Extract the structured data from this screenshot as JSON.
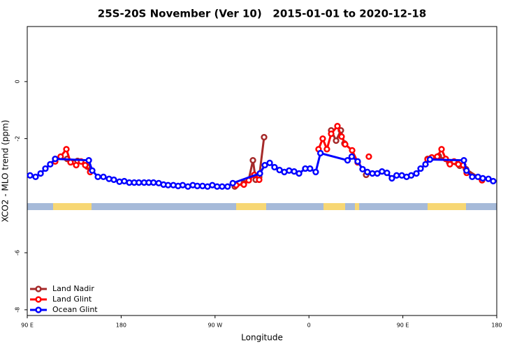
{
  "chart_data": {
    "type": "line",
    "title": "25S-20S November (Ver 10)   2015-01-01 to 2020-12-18",
    "x_label": "Longitude",
    "y_label": "XCO2 - MLO trend (ppm)",
    "xlim": [
      90,
      540
    ],
    "xticks": [
      {
        "value": 90,
        "label": "90 E"
      },
      {
        "value": 180,
        "label": "180"
      },
      {
        "value": 270,
        "label": "90 W"
      },
      {
        "value": 360,
        "label": "0"
      },
      {
        "value": 450,
        "label": "90 E"
      },
      {
        "value": 540,
        "label": "180"
      }
    ],
    "ylim": [
      -8.2,
      1.93
    ],
    "yticks": [
      -8,
      -6,
      -2,
      0
    ],
    "legend": "bottom-left",
    "series": [
      {
        "name": "Land Nadir",
        "color": "#a52a2a",
        "x": [
          116.8,
          128.2,
          138.2,
          147.6,
          null,
          288.9,
          297.6,
          302.3,
          306.3,
          309,
          312.3,
          317,
          null,
          381.3,
          386,
          390.6,
          394,
          null,
          414.8,
          null,
          473.7,
          484.4,
          494.4,
          504.5,
          510.5,
          525.9
        ],
        "values": [
          -2.71,
          -2.71,
          -2.78,
          -2.98,
          null,
          -3.68,
          -3.56,
          -3.44,
          -2.76,
          -3.44,
          -3.34,
          -1.95,
          null,
          -1.71,
          -2.07,
          -1.71,
          -2.17,
          null,
          -3.27,
          null,
          -2.71,
          -2.61,
          -2.83,
          -2.95,
          -3.07,
          -3.44
        ]
      },
      {
        "name": "Land Glint",
        "color": "#ff0000",
        "x": [
          116.8,
          122,
          127.5,
          131.5,
          136.9,
          141.6,
          145.6,
          150.3,
          null,
          290.2,
          297.6,
          302.3,
          307.6,
          312.3,
          null,
          369.2,
          373.2,
          377.2,
          381.3,
          387.3,
          391.3,
          394.7,
          401.4,
          406.7,
          null,
          417.4,
          null,
          473.7,
          477.7,
          483,
          487.1,
          491.1,
          495.1,
          499.1,
          503.2,
          507.9,
          511.2,
          525.9
        ],
        "values": [
          -2.8,
          -2.63,
          -2.37,
          -2.83,
          -2.93,
          -2.8,
          -2.93,
          -3.17,
          null,
          -3.63,
          -3.61,
          -3.46,
          -3.27,
          -3.44,
          null,
          -2.37,
          -2.0,
          -2.37,
          -1.83,
          -1.56,
          -1.93,
          -2.2,
          -2.41,
          -2.83,
          null,
          -2.63,
          null,
          -2.73,
          -2.66,
          -2.63,
          -2.37,
          -2.71,
          -2.9,
          -2.8,
          -2.9,
          -2.93,
          -3.2,
          -3.46
        ]
      },
      {
        "name": "Ocean Glint",
        "color": "#0000ff",
        "x": [
          92.7,
          98,
          102.8,
          107.4,
          112,
          116.8,
          149,
          152.3,
          157.7,
          163,
          168.4,
          173,
          178.4,
          183,
          187.8,
          192.5,
          197,
          202,
          206.5,
          211,
          216,
          220.6,
          225,
          230,
          234.6,
          239,
          244,
          248.7,
          253,
          258,
          262.8,
          267.4,
          272,
          276.8,
          282,
          287,
          313,
          317.7,
          322.4,
          327,
          331.8,
          336.4,
          341,
          345.8,
          350.5,
          356.5,
          361,
          366.5,
          371,
          397,
          401,
          406.7,
          411.4,
          416,
          420.8,
          425.5,
          430,
          434.8,
          439.5,
          444,
          449,
          453.6,
          458,
          463,
          467,
          471.7,
          476,
          508.5,
          511,
          516.5,
          522,
          526.6,
          532,
          536.6
        ],
        "values": [
          -3.29,
          -3.34,
          -3.22,
          -3.05,
          -2.9,
          -2.71,
          -2.76,
          -3.12,
          -3.34,
          -3.34,
          -3.41,
          -3.44,
          -3.51,
          -3.49,
          -3.54,
          -3.54,
          -3.54,
          -3.54,
          -3.54,
          -3.54,
          -3.56,
          -3.61,
          -3.63,
          -3.63,
          -3.66,
          -3.63,
          -3.68,
          -3.63,
          -3.66,
          -3.66,
          -3.68,
          -3.63,
          -3.68,
          -3.68,
          -3.68,
          -3.56,
          -3.22,
          -2.93,
          -2.85,
          -3.0,
          -3.1,
          -3.17,
          -3.12,
          -3.15,
          -3.22,
          -3.05,
          -3.05,
          -3.17,
          -2.51,
          -2.76,
          -2.63,
          -2.8,
          -3.07,
          -3.17,
          -3.22,
          -3.22,
          -3.15,
          -3.2,
          -3.39,
          -3.29,
          -3.29,
          -3.34,
          -3.29,
          -3.22,
          -3.05,
          -2.9,
          -2.73,
          -2.76,
          -3.12,
          -3.34,
          -3.34,
          -3.39,
          -3.41,
          -3.49
        ]
      }
    ]
  }
}
